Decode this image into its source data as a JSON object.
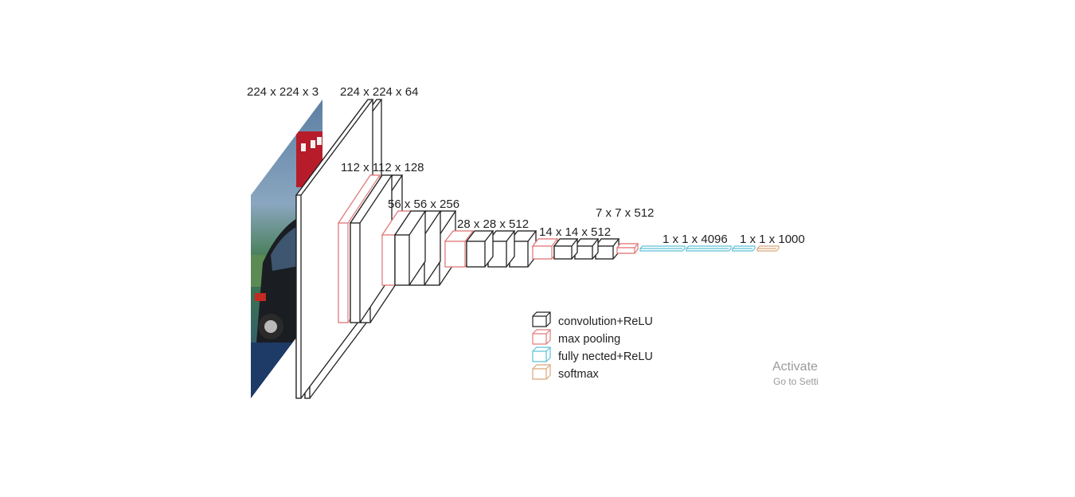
{
  "labels": {
    "input": "224 x 224 x 3",
    "conv1": "224 x 224 x 64",
    "conv2": "112 x 112 x 128",
    "conv3": "56 x 56 x 256",
    "conv4": "28 x 28 x 512",
    "conv5": "14 x 14 x 512",
    "pool5": "7 x 7 x 512",
    "fc": "1 x 1 x 4096",
    "softmax": "1 x 1 x 1000"
  },
  "legend": {
    "items": [
      {
        "label": "convolution+ReLU",
        "color": "#222222"
      },
      {
        "label": "max pooling",
        "color": "#e07a7a"
      },
      {
        "label": "fully nected+ReLU",
        "color": "#5fc0d8"
      },
      {
        "label": "softmax",
        "color": "#d8a878"
      }
    ]
  },
  "watermark": {
    "line1": "Activate",
    "line2": "Go to Setti"
  }
}
